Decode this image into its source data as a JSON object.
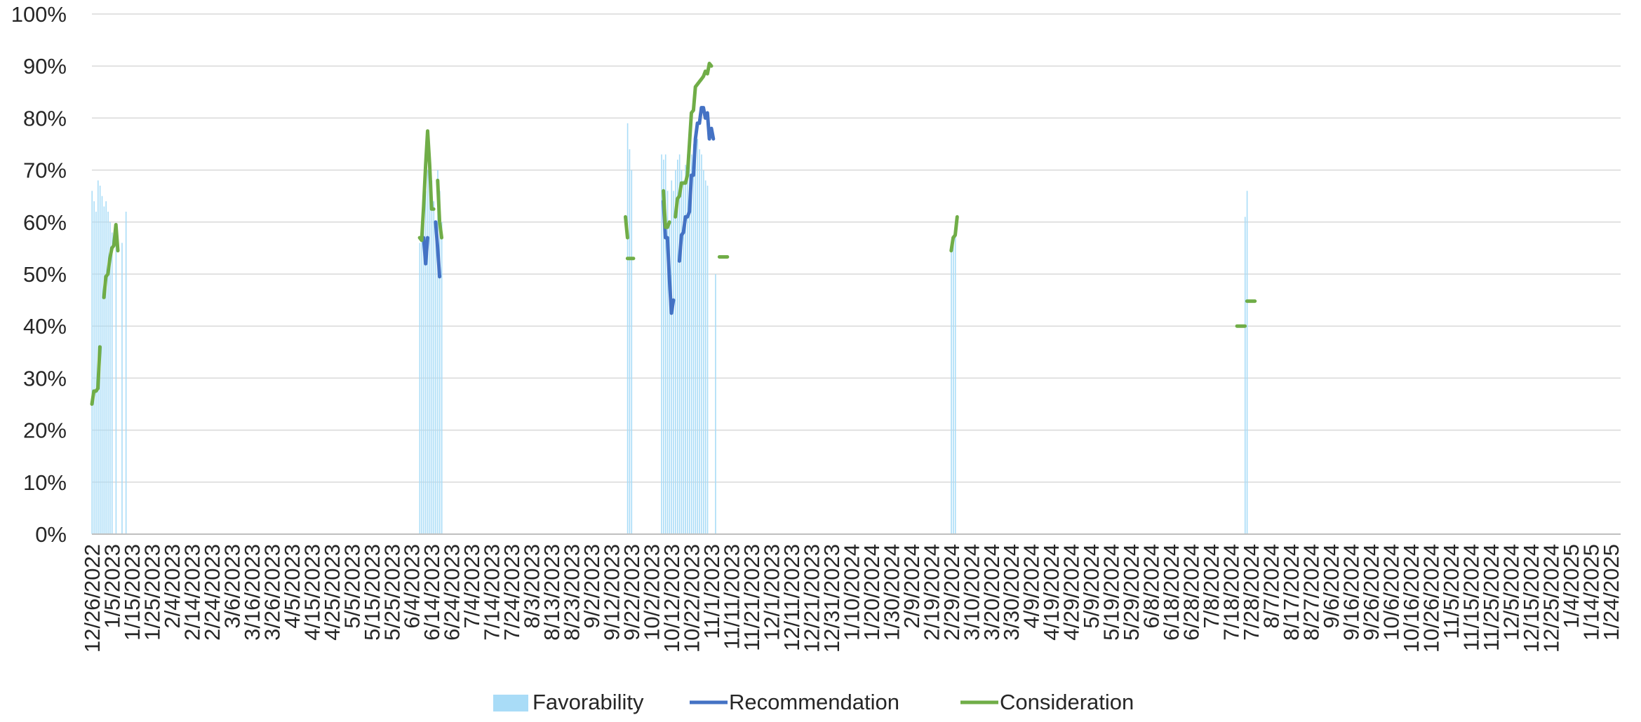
{
  "chart_data": {
    "type": "bar+line",
    "title": "",
    "xlabel": "",
    "ylabel": "",
    "x_axis": "date",
    "xlim": [
      "2022-12-26",
      "2025-01-29"
    ],
    "ylim": [
      0,
      1
    ],
    "y_ticks": [
      "0%",
      "10%",
      "20%",
      "30%",
      "40%",
      "50%",
      "60%",
      "70%",
      "80%",
      "90%",
      "100%"
    ],
    "x_ticks": [
      "12/26/2022",
      "1/5/2023",
      "1/15/2023",
      "1/25/2023",
      "2/4/2023",
      "2/14/2023",
      "2/24/2023",
      "3/6/2023",
      "3/16/2023",
      "3/26/2023",
      "4/5/2023",
      "4/15/2023",
      "4/25/2023",
      "5/5/2023",
      "5/15/2023",
      "5/25/2023",
      "6/4/2023",
      "6/14/2023",
      "6/24/2023",
      "7/4/2023",
      "7/14/2023",
      "7/24/2023",
      "8/3/2023",
      "8/13/2023",
      "8/23/2023",
      "9/2/2023",
      "9/12/2023",
      "9/22/2023",
      "10/2/2023",
      "10/12/2023",
      "10/22/2023",
      "11/1/2023",
      "11/11/2023",
      "11/21/2023",
      "12/1/2023",
      "12/11/2023",
      "12/21/2023",
      "12/31/2023",
      "1/10/2024",
      "1/20/2024",
      "1/30/2024",
      "2/9/2024",
      "2/19/2024",
      "2/29/2024",
      "3/10/2024",
      "3/20/2024",
      "3/30/2024",
      "4/9/2024",
      "4/19/2024",
      "4/29/2024",
      "5/9/2024",
      "5/19/2024",
      "5/29/2024",
      "6/8/2024",
      "6/18/2024",
      "6/28/2024",
      "7/8/2024",
      "7/18/2024",
      "7/28/2024",
      "8/7/2024",
      "8/17/2024",
      "8/27/2024",
      "9/6/2024",
      "9/16/2024",
      "9/26/2024",
      "10/6/2024",
      "10/16/2024",
      "10/26/2024",
      "11/5/2024",
      "11/15/2024",
      "11/25/2024",
      "12/5/2024",
      "12/15/2024",
      "12/25/2024",
      "1/4/2025",
      "1/14/2025",
      "1/24/2025"
    ],
    "grid": true,
    "legend_position": "bottom",
    "colors": {
      "Favorability": "#a9dcf7",
      "Recommendation": "#4472c4",
      "Consideration": "#70ad47"
    },
    "series": [
      {
        "name": "Favorability",
        "type": "bar",
        "points": [
          [
            "2022-12-26",
            0.66
          ],
          [
            "2022-12-27",
            0.64
          ],
          [
            "2022-12-28",
            0.62
          ],
          [
            "2022-12-29",
            0.68
          ],
          [
            "2022-12-30",
            0.67
          ],
          [
            "2022-12-31",
            0.65
          ],
          [
            "2023-01-01",
            0.63
          ],
          [
            "2023-01-02",
            0.64
          ],
          [
            "2023-01-03",
            0.62
          ],
          [
            "2023-01-04",
            0.6
          ],
          [
            "2023-01-05",
            0.58
          ],
          [
            "2023-01-07",
            0.57
          ],
          [
            "2023-01-10",
            0.56
          ],
          [
            "2023-01-12",
            0.62
          ],
          [
            "2023-06-08",
            0.56
          ],
          [
            "2023-06-09",
            0.58
          ],
          [
            "2023-06-10",
            0.62
          ],
          [
            "2023-06-11",
            0.66
          ],
          [
            "2023-06-12",
            0.7
          ],
          [
            "2023-06-13",
            0.72
          ],
          [
            "2023-06-14",
            0.68
          ],
          [
            "2023-06-15",
            0.64
          ],
          [
            "2023-06-16",
            0.6
          ],
          [
            "2023-06-17",
            0.7
          ],
          [
            "2023-06-18",
            0.66
          ],
          [
            "2023-06-19",
            0.6
          ],
          [
            "2023-09-20",
            0.79
          ],
          [
            "2023-09-21",
            0.74
          ],
          [
            "2023-09-22",
            0.7
          ],
          [
            "2023-10-07",
            0.73
          ],
          [
            "2023-10-08",
            0.72
          ],
          [
            "2023-10-09",
            0.73
          ],
          [
            "2023-10-10",
            0.66
          ],
          [
            "2023-10-11",
            0.6
          ],
          [
            "2023-10-12",
            0.68
          ],
          [
            "2023-10-13",
            0.66
          ],
          [
            "2023-10-14",
            0.7
          ],
          [
            "2023-10-15",
            0.72
          ],
          [
            "2023-10-16",
            0.73
          ],
          [
            "2023-10-17",
            0.7
          ],
          [
            "2023-10-18",
            0.68
          ],
          [
            "2023-10-19",
            0.71
          ],
          [
            "2023-10-20",
            0.73
          ],
          [
            "2023-10-21",
            0.72
          ],
          [
            "2023-10-22",
            0.73
          ],
          [
            "2023-10-23",
            0.75
          ],
          [
            "2023-10-24",
            0.74
          ],
          [
            "2023-10-25",
            0.76
          ],
          [
            "2023-10-26",
            0.74
          ],
          [
            "2023-10-27",
            0.73
          ],
          [
            "2023-10-28",
            0.7
          ],
          [
            "2023-10-29",
            0.68
          ],
          [
            "2023-10-30",
            0.67
          ],
          [
            "2023-11-03",
            0.5
          ],
          [
            "2024-02-29",
            0.56
          ],
          [
            "2024-03-01",
            0.57
          ],
          [
            "2024-03-02",
            0.6
          ],
          [
            "2024-07-25",
            0.61
          ],
          [
            "2024-07-26",
            0.66
          ]
        ]
      },
      {
        "name": "Recommendation",
        "type": "line",
        "segments": [
          [
            [
              "2023-06-10",
              0.57
            ],
            [
              "2023-06-11",
              0.52
            ],
            [
              "2023-06-12",
              0.57
            ]
          ],
          [
            [
              "2023-06-16",
              0.6
            ],
            [
              "2023-06-17",
              0.55
            ],
            [
              "2023-06-18",
              0.495
            ]
          ],
          [
            [
              "2023-10-08",
              0.64
            ],
            [
              "2023-10-09",
              0.57
            ],
            [
              "2023-10-10",
              0.57
            ],
            [
              "2023-10-11",
              0.49
            ],
            [
              "2023-10-12",
              0.425
            ],
            [
              "2023-10-13",
              0.45
            ]
          ],
          [
            [
              "2023-10-16",
              0.525
            ],
            [
              "2023-10-17",
              0.575
            ],
            [
              "2023-10-18",
              0.58
            ],
            [
              "2023-10-19",
              0.61
            ],
            [
              "2023-10-20",
              0.61
            ],
            [
              "2023-10-21",
              0.62
            ],
            [
              "2023-10-22",
              0.69
            ],
            [
              "2023-10-23",
              0.69
            ],
            [
              "2023-10-24",
              0.76
            ],
            [
              "2023-10-25",
              0.79
            ],
            [
              "2023-10-26",
              0.79
            ],
            [
              "2023-10-27",
              0.82
            ],
            [
              "2023-10-28",
              0.82
            ],
            [
              "2023-10-29",
              0.8
            ],
            [
              "2023-10-30",
              0.81
            ],
            [
              "2023-10-31",
              0.76
            ],
            [
              "2023-11-01",
              0.78
            ],
            [
              "2023-11-02",
              0.76
            ]
          ]
        ]
      },
      {
        "name": "Consideration",
        "type": "line",
        "segments": [
          [
            [
              "2022-12-26",
              0.25
            ],
            [
              "2022-12-27",
              0.275
            ],
            [
              "2022-12-28",
              0.275
            ],
            [
              "2022-12-29",
              0.28
            ],
            [
              "2022-12-30",
              0.36
            ]
          ],
          [
            [
              "2023-01-01",
              0.455
            ],
            [
              "2023-01-02",
              0.495
            ],
            [
              "2023-01-03",
              0.5
            ],
            [
              "2023-01-04",
              0.53
            ],
            [
              "2023-01-05",
              0.55
            ],
            [
              "2023-01-06",
              0.555
            ],
            [
              "2023-01-07",
              0.595
            ],
            [
              "2023-01-08",
              0.545
            ]
          ],
          [
            [
              "2023-06-08",
              0.57
            ],
            [
              "2023-06-09",
              0.565
            ],
            [
              "2023-06-10",
              0.63
            ],
            [
              "2023-06-11",
              0.71
            ],
            [
              "2023-06-12",
              0.775
            ],
            [
              "2023-06-13",
              0.71
            ],
            [
              "2023-06-14",
              0.625
            ],
            [
              "2023-06-15",
              0.625
            ]
          ],
          [
            [
              "2023-06-17",
              0.68
            ],
            [
              "2023-06-18",
              0.6
            ],
            [
              "2023-06-19",
              0.57
            ]
          ],
          [
            [
              "2023-09-19",
              0.61
            ],
            [
              "2023-09-20",
              0.57
            ]
          ],
          [
            [
              "2023-09-20",
              0.53
            ],
            [
              "2023-09-23",
              0.53
            ]
          ],
          [
            [
              "2023-10-08",
              0.66
            ],
            [
              "2023-10-09",
              0.59
            ],
            [
              "2023-10-10",
              0.59
            ],
            [
              "2023-10-11",
              0.6
            ]
          ],
          [
            [
              "2023-10-14",
              0.61
            ],
            [
              "2023-10-15",
              0.645
            ],
            [
              "2023-10-16",
              0.65
            ],
            [
              "2023-10-17",
              0.675
            ],
            [
              "2023-10-18",
              0.675
            ],
            [
              "2023-10-19",
              0.675
            ],
            [
              "2023-10-20",
              0.69
            ],
            [
              "2023-10-21",
              0.75
            ],
            [
              "2023-10-22",
              0.81
            ],
            [
              "2023-10-23",
              0.815
            ],
            [
              "2023-10-24",
              0.86
            ],
            [
              "2023-10-25",
              0.865
            ],
            [
              "2023-10-26",
              0.87
            ],
            [
              "2023-10-27",
              0.875
            ],
            [
              "2023-10-28",
              0.88
            ],
            [
              "2023-10-29",
              0.89
            ],
            [
              "2023-10-30",
              0.885
            ],
            [
              "2023-10-31",
              0.905
            ],
            [
              "2023-11-01",
              0.9
            ]
          ],
          [
            [
              "2023-11-05",
              0.533
            ],
            [
              "2023-11-09",
              0.533
            ]
          ],
          [
            [
              "2024-02-29",
              0.545
            ],
            [
              "2024-03-01",
              0.57
            ],
            [
              "2024-03-02",
              0.575
            ],
            [
              "2024-03-03",
              0.61
            ]
          ],
          [
            [
              "2024-07-21",
              0.4
            ],
            [
              "2024-07-25",
              0.4
            ]
          ],
          [
            [
              "2024-07-26",
              0.448
            ],
            [
              "2024-07-30",
              0.448
            ]
          ]
        ]
      }
    ]
  }
}
